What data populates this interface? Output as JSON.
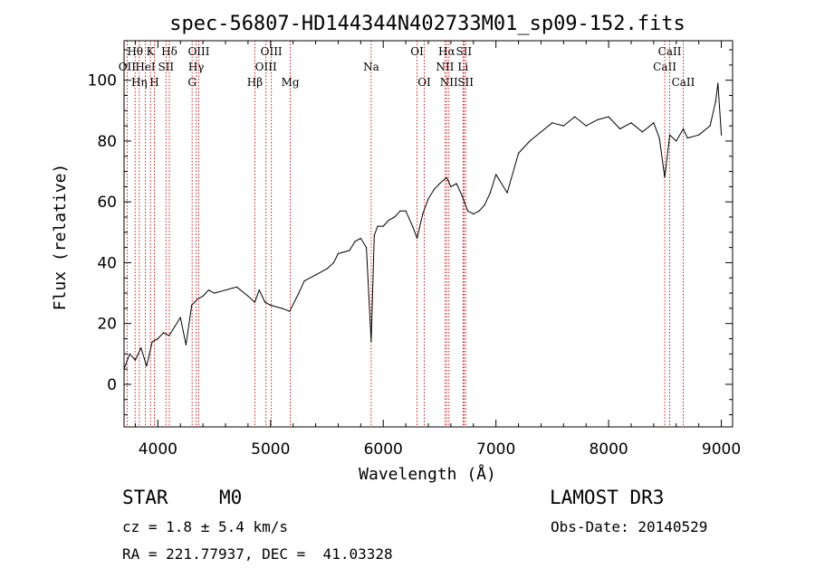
{
  "chart_data": {
    "type": "line",
    "title": "spec-56807-HD144344N402733M01_sp09-152.fits",
    "xlabel": "Wavelength (Å)",
    "ylabel": "Flux (relative)",
    "xlim": [
      3700,
      9100
    ],
    "ylim": [
      -14,
      113
    ],
    "x_ticks": [
      4000,
      5000,
      6000,
      7000,
      8000,
      9000
    ],
    "y_ticks": [
      0,
      20,
      40,
      60,
      80,
      100
    ],
    "series": [
      {
        "name": "spectrum",
        "x": [
          3700,
          3750,
          3800,
          3850,
          3900,
          3950,
          4000,
          4050,
          4100,
          4150,
          4200,
          4250,
          4300,
          4350,
          4400,
          4450,
          4500,
          4600,
          4700,
          4800,
          4860,
          4900,
          4950,
          5000,
          5100,
          5170,
          5250,
          5300,
          5400,
          5500,
          5560,
          5600,
          5700,
          5750,
          5800,
          5850,
          5893,
          5920,
          5950,
          6000,
          6050,
          6100,
          6150,
          6200,
          6260,
          6300,
          6350,
          6400,
          6450,
          6500,
          6563,
          6600,
          6650,
          6700,
          6750,
          6800,
          6850,
          6900,
          6950,
          7000,
          7100,
          7200,
          7300,
          7400,
          7500,
          7600,
          7700,
          7800,
          7900,
          8000,
          8100,
          8200,
          8300,
          8400,
          8450,
          8498,
          8542,
          8600,
          8662,
          8700,
          8800,
          8900,
          8950,
          8970,
          9000
        ],
        "y": [
          5,
          10,
          8,
          12,
          6,
          14,
          15,
          17,
          16,
          19,
          22,
          13,
          26,
          28,
          29,
          31,
          30,
          31,
          32,
          29,
          27,
          31,
          27,
          26,
          25,
          24,
          30,
          34,
          36,
          38,
          40,
          43,
          44,
          47,
          48,
          45,
          14,
          49,
          52,
          52,
          54,
          55,
          57,
          57,
          52,
          48,
          56,
          61,
          64,
          66,
          68,
          65,
          66,
          62,
          57,
          56,
          57,
          59,
          63,
          69,
          63,
          76,
          80,
          83,
          86,
          85,
          88,
          85,
          87,
          88,
          84,
          86,
          83,
          86,
          81,
          68,
          82,
          80,
          84,
          81,
          82,
          85,
          93,
          99,
          82
        ]
      }
    ],
    "spectral_lines": [
      {
        "name": "OII",
        "wavelength": 3727,
        "row": 2
      },
      {
        "name": "Hθ",
        "wavelength": 3798,
        "row": 1
      },
      {
        "name": "Hη",
        "wavelength": 3835,
        "row": 3
      },
      {
        "name": "HeI",
        "wavelength": 3889,
        "row": 2
      },
      {
        "name": "K",
        "wavelength": 3934,
        "row": 1
      },
      {
        "name": "H",
        "wavelength": 3969,
        "row": 3
      },
      {
        "name": "SII",
        "wavelength": 4072,
        "row": 2
      },
      {
        "name": "Hδ",
        "wavelength": 4102,
        "row": 1
      },
      {
        "name": "G",
        "wavelength": 4304,
        "row": 3
      },
      {
        "name": "Hγ",
        "wavelength": 4340,
        "row": 2
      },
      {
        "name": "OIII",
        "wavelength": 4363,
        "row": 1
      },
      {
        "name": "Hβ",
        "wavelength": 4861,
        "row": 3
      },
      {
        "name": "OIII",
        "wavelength": 4959,
        "row": 2
      },
      {
        "name": "OIII",
        "wavelength": 5007,
        "row": 1
      },
      {
        "name": "Mg",
        "wavelength": 5175,
        "row": 3
      },
      {
        "name": "Na",
        "wavelength": 5893,
        "row": 2
      },
      {
        "name": "OI",
        "wavelength": 6300,
        "row": 1
      },
      {
        "name": "OI",
        "wavelength": 6364,
        "row": 3
      },
      {
        "name": "NII",
        "wavelength": 6548,
        "row": 2
      },
      {
        "name": "Hα",
        "wavelength": 6563,
        "row": 1
      },
      {
        "name": "NII",
        "wavelength": 6583,
        "row": 3
      },
      {
        "name": "Li",
        "wavelength": 6708,
        "row": 2
      },
      {
        "name": "SII",
        "wavelength": 6716,
        "row": 1
      },
      {
        "name": "SII",
        "wavelength": 6731,
        "row": 3
      },
      {
        "name": "CaII",
        "wavelength": 8498,
        "row": 2
      },
      {
        "name": "CaII",
        "wavelength": 8542,
        "row": 1
      },
      {
        "name": "CaII",
        "wavelength": 8662,
        "row": 3
      }
    ]
  },
  "info": {
    "object_class": "STAR",
    "subclass": "M0",
    "survey": "LAMOST DR3",
    "redshift": "cz = 1.8 ± 5.4 km/s",
    "obs_date": "Obs-Date: 20140529",
    "coords": "RA = 221.77937, DEC =  41.03328"
  },
  "colors": {
    "line_marker": "#cc0000",
    "spectrum": "#000000"
  }
}
